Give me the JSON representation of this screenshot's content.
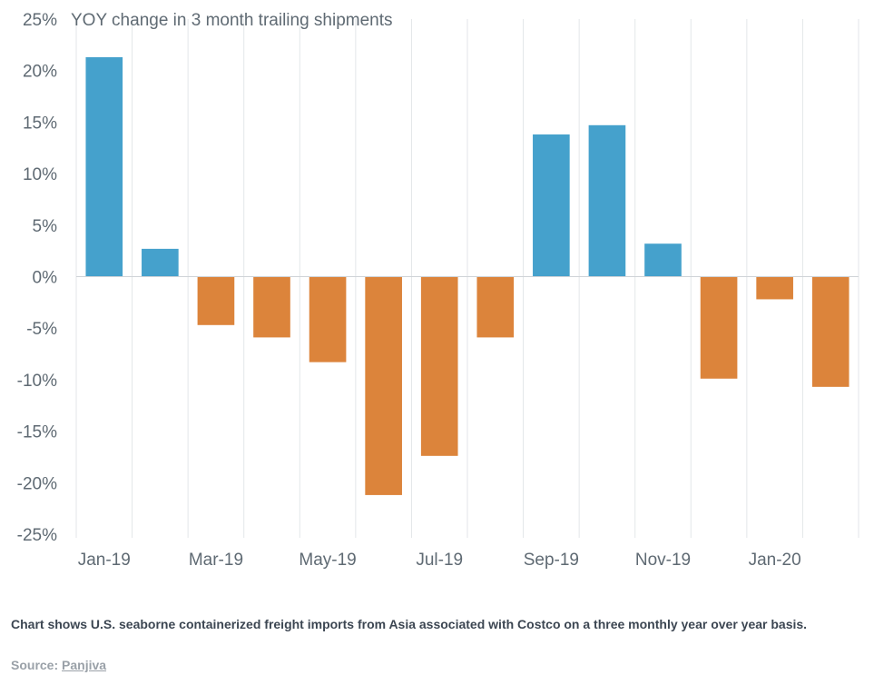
{
  "chart_data": {
    "type": "bar",
    "title": "YOY change in 3 month trailing shipments",
    "categories": [
      "Jan-19",
      "Feb-19",
      "Mar-19",
      "Apr-19",
      "May-19",
      "Jun-19",
      "Jul-19",
      "Aug-19",
      "Sep-19",
      "Oct-19",
      "Nov-19",
      "Dec-19",
      "Jan-20",
      "Feb-20"
    ],
    "tick_labels": [
      "Jan-19",
      "",
      "Mar-19",
      "",
      "May-19",
      "",
      "Jul-19",
      "",
      "Sep-19",
      "",
      "Nov-19",
      "",
      "Jan-20",
      ""
    ],
    "values": [
      21.3,
      2.7,
      -4.7,
      -5.9,
      -8.3,
      -21.2,
      -17.4,
      -5.9,
      13.8,
      14.7,
      3.2,
      -9.9,
      -2.2,
      -10.7
    ],
    "ylim": [
      -25,
      25
    ],
    "yticks": [
      -25,
      -20,
      -15,
      -10,
      -5,
      0,
      5,
      10,
      15,
      20,
      25
    ],
    "ytick_labels": [
      "-25%",
      "-20%",
      "-15%",
      "-10%",
      "-5%",
      "0%",
      "5%",
      "10%",
      "15%",
      "20%",
      "25%"
    ],
    "xlabel": "",
    "ylabel": "",
    "grid": "vertical",
    "colors": {
      "positive": "#45a1cc",
      "negative": "#dc843b",
      "grid": "#e3e6e9",
      "axis": "#cfd3d7"
    }
  },
  "caption": "Chart shows U.S. seaborne containerized freight imports from Asia associated with Costco on a three monthly year over year basis.",
  "source": {
    "label": "Source:",
    "link_text": "Panjiva"
  }
}
